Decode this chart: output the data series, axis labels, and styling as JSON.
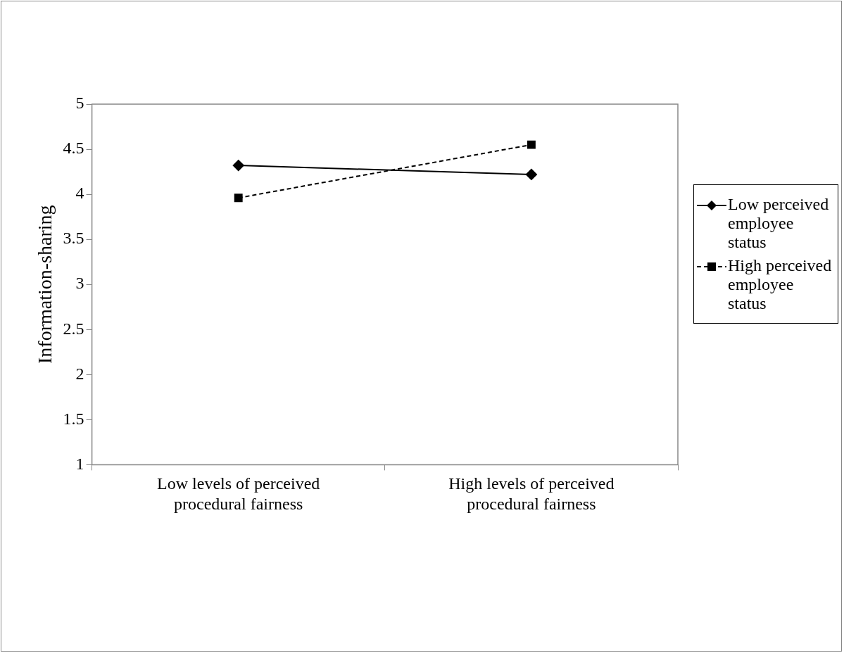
{
  "chart_data": {
    "type": "line",
    "ylabel": "Information-sharing",
    "categories": [
      "Low levels of perceived procedural fairness",
      "High levels of perceived procedural fairness"
    ],
    "series": [
      {
        "name": "Low perceived employee status",
        "color": "#000000",
        "values": [
          4.32,
          4.22
        ],
        "marker": "diamond",
        "line_style": "solid"
      },
      {
        "name": "High perceived employee status",
        "color": "#000000",
        "values": [
          3.96,
          4.55
        ],
        "marker": "square",
        "line_style": "dashed"
      }
    ],
    "ylim": [
      1,
      5
    ],
    "yticks": [
      1,
      1.5,
      2,
      2.5,
      3,
      3.5,
      4,
      4.5,
      5
    ],
    "grid": false,
    "legend": "right"
  }
}
